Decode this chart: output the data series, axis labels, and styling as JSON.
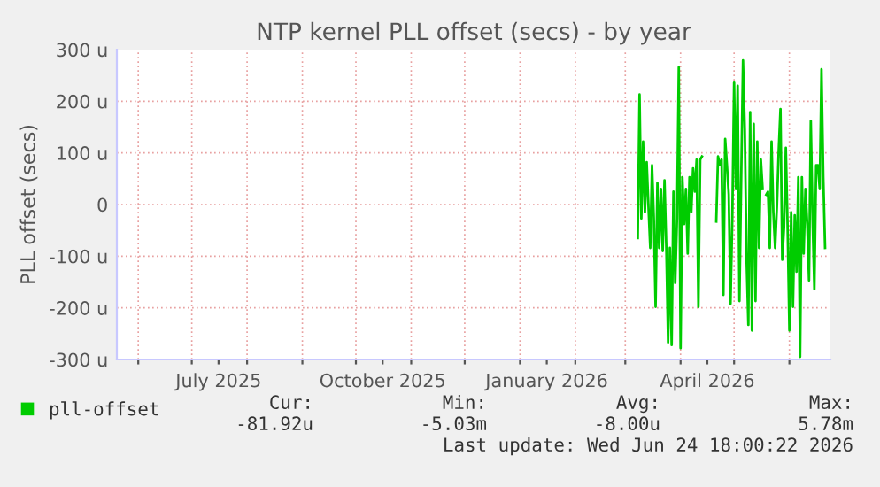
{
  "chart_data": {
    "type": "line",
    "title": "NTP kernel PLL offset (secs) - by year",
    "ylabel": "PLL offset (secs)",
    "ylim": [
      -300,
      300
    ],
    "yticks": [
      {
        "value": -300,
        "label": "-300 u"
      },
      {
        "value": -200,
        "label": "-200 u"
      },
      {
        "value": -100,
        "label": "-100 u"
      },
      0,
      {
        "value": 100,
        "label": "100 u"
      },
      {
        "value": 200,
        "label": "200 u"
      },
      {
        "value": 300,
        "label": "300 u"
      }
    ],
    "xlim": [
      "2025-05-20",
      "2026-06-24"
    ],
    "xticks": [
      {
        "value": "2025-06-01",
        "label": null
      },
      {
        "value": "2025-07-01",
        "label": null
      },
      {
        "value": "2025-07-16",
        "label": "July 2025"
      },
      {
        "value": "2025-08-01",
        "label": null
      },
      {
        "value": "2025-09-01",
        "label": null
      },
      {
        "value": "2025-10-01",
        "label": null
      },
      {
        "value": "2025-10-16",
        "label": "October 2025"
      },
      {
        "value": "2025-11-01",
        "label": null
      },
      {
        "value": "2025-12-01",
        "label": null
      },
      {
        "value": "2026-01-01",
        "label": null
      },
      {
        "value": "2026-01-16",
        "label": "January 2026"
      },
      {
        "value": "2026-02-01",
        "label": null
      },
      {
        "value": "2026-03-01",
        "label": null
      },
      {
        "value": "2026-04-01",
        "label": null
      },
      {
        "value": "2026-04-16",
        "label": "April 2026"
      },
      {
        "value": "2026-05-01",
        "label": null
      },
      {
        "value": "2026-06-01",
        "label": null
      }
    ],
    "grid": true,
    "legend": "bottom left",
    "annotations": [
      "Cur:",
      "Min:",
      "Avg:",
      "Max:",
      "-81.92u",
      "-5.03m",
      "-8.00u",
      "5.78m",
      "Last update: Wed Jun 24 18:00:22 2026"
    ],
    "series": [
      {
        "name": "pll-offset",
        "color": "#00cc00",
        "x": [
          "2026-03-08",
          "2026-03-09",
          "2026-03-10",
          "2026-03-11",
          "2026-03-12",
          "2026-03-13",
          "2026-03-14",
          "2026-03-15",
          "2026-03-16",
          "2026-03-17",
          "2026-03-18",
          "2026-03-19",
          "2026-03-20",
          "2026-03-21",
          "2026-03-22",
          "2026-03-23",
          "2026-03-24",
          "2026-03-25",
          "2026-03-26",
          "2026-03-27",
          "2026-03-28",
          "2026-03-29",
          "2026-03-30",
          "2026-03-31",
          "2026-04-01",
          "2026-04-02",
          "2026-04-03",
          "2026-04-04",
          "2026-04-05",
          "2026-04-06",
          "2026-04-07",
          "2026-04-08",
          "2026-04-09",
          "2026-04-10",
          "2026-04-11",
          "2026-04-12",
          "2026-04-13",
          "2026-04-17",
          "2026-04-21",
          "2026-04-22",
          "2026-04-23",
          "2026-04-24",
          "2026-04-25",
          "2026-04-26",
          "2026-04-27",
          "2026-04-28",
          "2026-04-29",
          "2026-04-30",
          "2026-05-01",
          "2026-05-02",
          "2026-05-03",
          "2026-05-04",
          "2026-05-05",
          "2026-05-06",
          "2026-05-07",
          "2026-05-08",
          "2026-05-09",
          "2026-05-10",
          "2026-05-11",
          "2026-05-12",
          "2026-05-13",
          "2026-05-14",
          "2026-05-15",
          "2026-05-16",
          "2026-05-17",
          "2026-05-18",
          "2026-05-19",
          "2026-05-20",
          "2026-05-21",
          "2026-05-22",
          "2026-05-23",
          "2026-05-24",
          "2026-05-25",
          "2026-05-26",
          "2026-05-27",
          "2026-05-28",
          "2026-05-29",
          "2026-05-30",
          "2026-05-31",
          "2026-06-01",
          "2026-06-02",
          "2026-06-03",
          "2026-06-04",
          "2026-06-05",
          "2026-06-06",
          "2026-06-07",
          "2026-06-08",
          "2026-06-09",
          "2026-06-10",
          "2026-06-11",
          "2026-06-12",
          "2026-06-13",
          "2026-06-14",
          "2026-06-15",
          "2026-06-16",
          "2026-06-17",
          "2026-06-18",
          "2026-06-19",
          "2026-06-20",
          "2026-06-21"
        ],
        "values": [
          -65,
          213,
          -27,
          122,
          -15,
          82,
          -4,
          -84,
          76,
          -27,
          -198,
          42,
          -84,
          30,
          -90,
          47,
          -84,
          -267,
          -84,
          -272,
          25,
          -152,
          -27,
          266,
          -278,
          53,
          -38,
          30,
          -95,
          53,
          -15,
          70,
          25,
          87,
          -198,
          87,
          93,
          null,
          -33,
          93,
          76,
          87,
          -175,
          127,
          76,
          19,
          -192,
          -27,
          236,
          30,
          230,
          -187,
          53,
          279,
          145,
          -107,
          -233,
          179,
          -244,
          156,
          -187,
          122,
          -84,
          87,
          30,
          null,
          19,
          25,
          -84,
          122,
          -15,
          -84,
          -4,
          104,
          185,
          -107,
          -44,
          110,
          -44,
          -244,
          -15,
          -198,
          -21,
          -130,
          53,
          -295,
          53,
          -95,
          30,
          -38,
          -147,
          162,
          -27,
          -164,
          76,
          76,
          30,
          262,
          53,
          -84
        ]
      }
    ]
  }
}
